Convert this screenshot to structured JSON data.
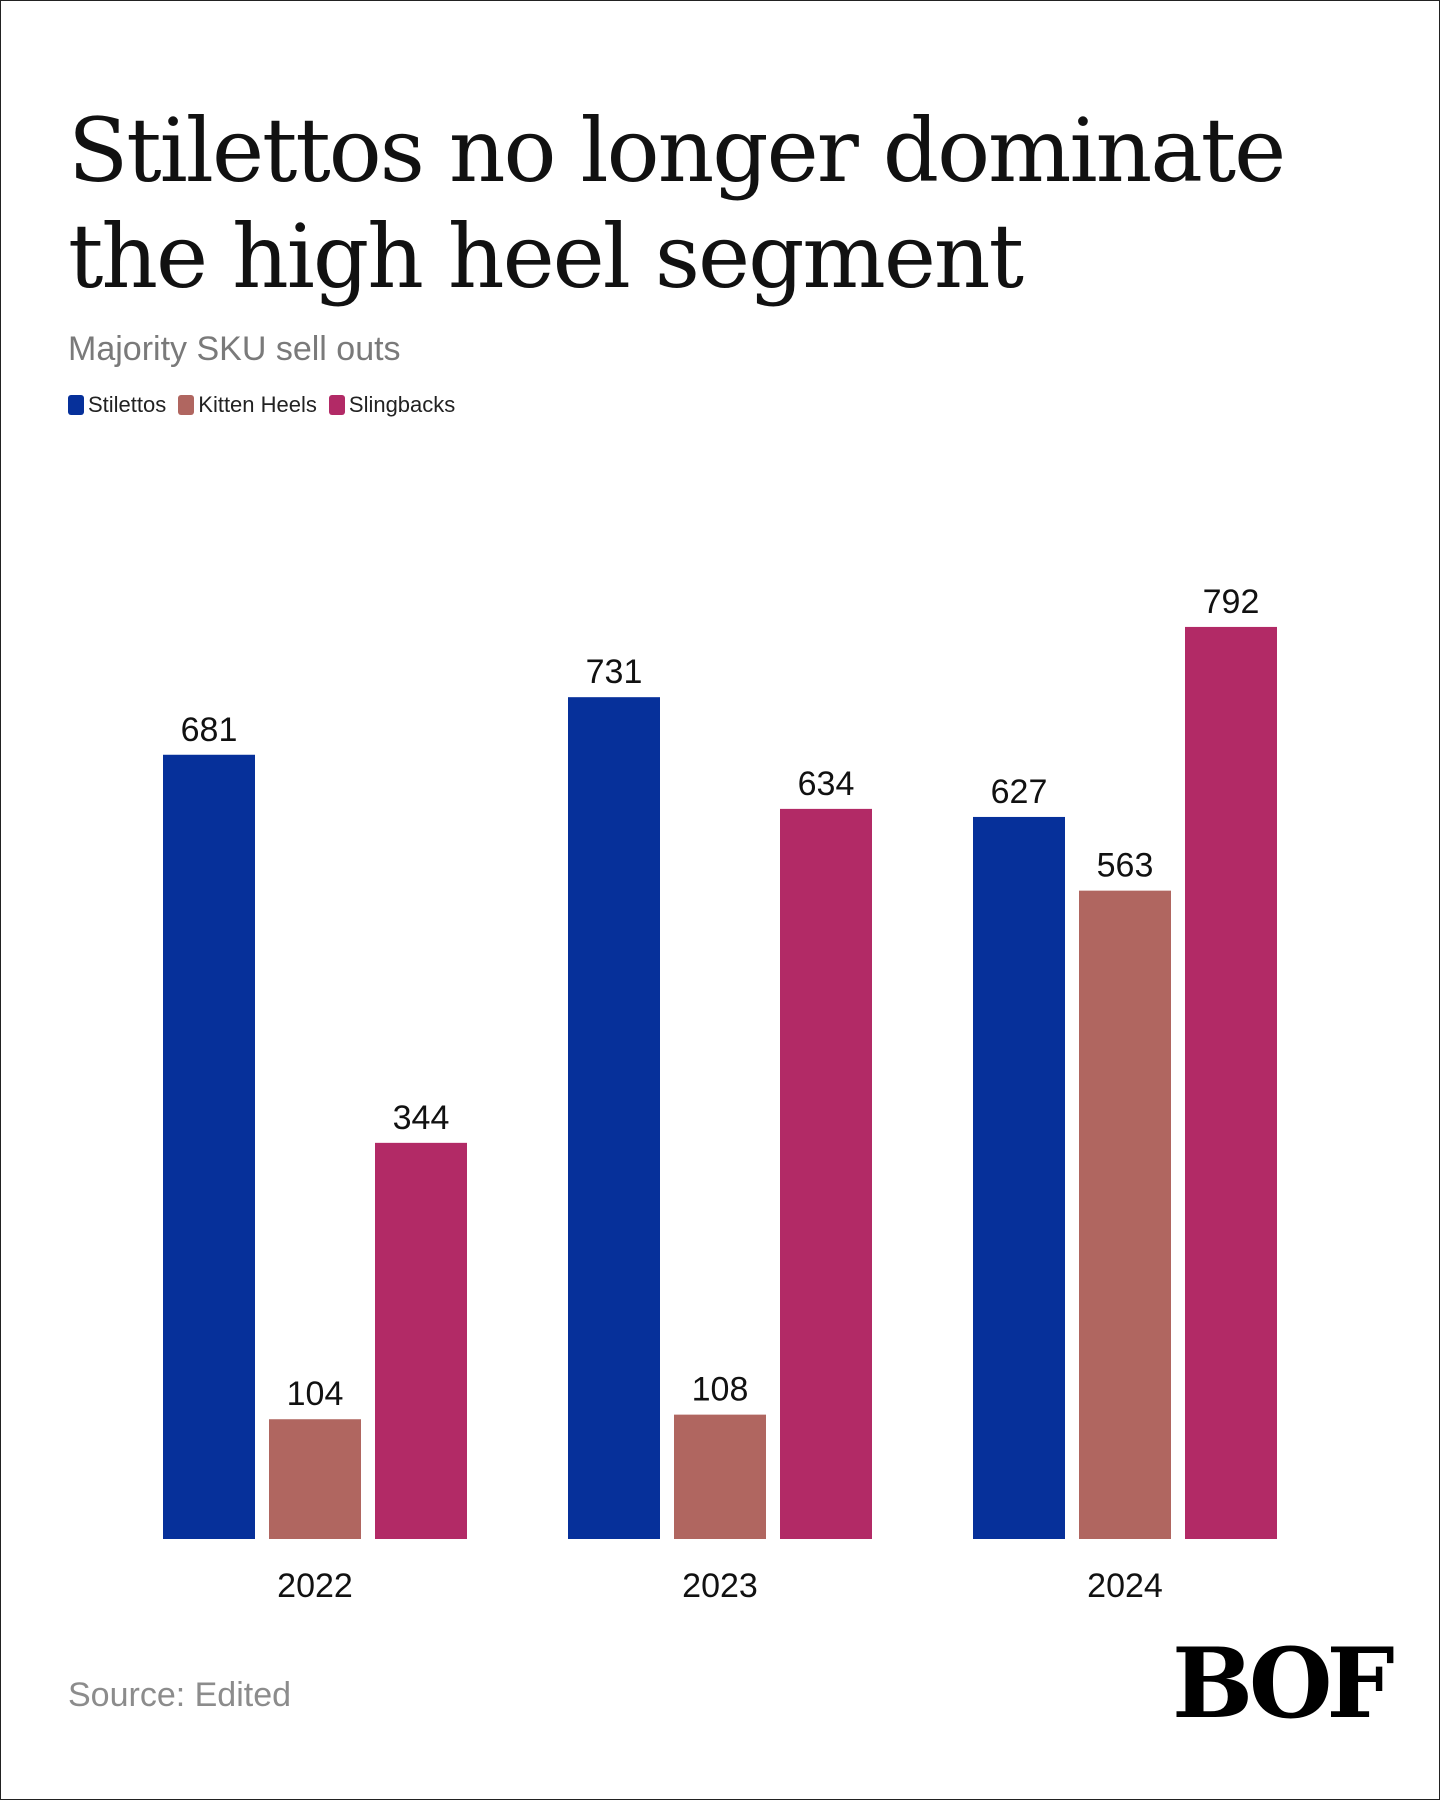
{
  "title": "Stilettos no longer dominate the high heel segment",
  "subtitle": "Majority SKU sell outs",
  "source": "Source: Edited",
  "logo": "BOF",
  "colors": {
    "stilettos": "#06309a",
    "kitten_heels": "#b06660",
    "slingbacks": "#b22a66"
  },
  "chart_data": {
    "type": "bar",
    "title": "Stilettos no longer dominate the high heel segment",
    "subtitle": "Majority SKU sell outs",
    "xlabel": "",
    "ylabel": "",
    "categories": [
      "2022",
      "2023",
      "2024"
    ],
    "series": [
      {
        "name": "Stilettos",
        "color": "#06309a",
        "values": [
          681,
          731,
          627
        ]
      },
      {
        "name": "Kitten Heels",
        "color": "#b06660",
        "values": [
          104,
          108,
          563
        ]
      },
      {
        "name": "Slingbacks",
        "color": "#b22a66",
        "values": [
          344,
          634,
          792
        ]
      }
    ],
    "ylim": [
      0,
      800
    ],
    "grid": false,
    "legend": "top-left"
  }
}
